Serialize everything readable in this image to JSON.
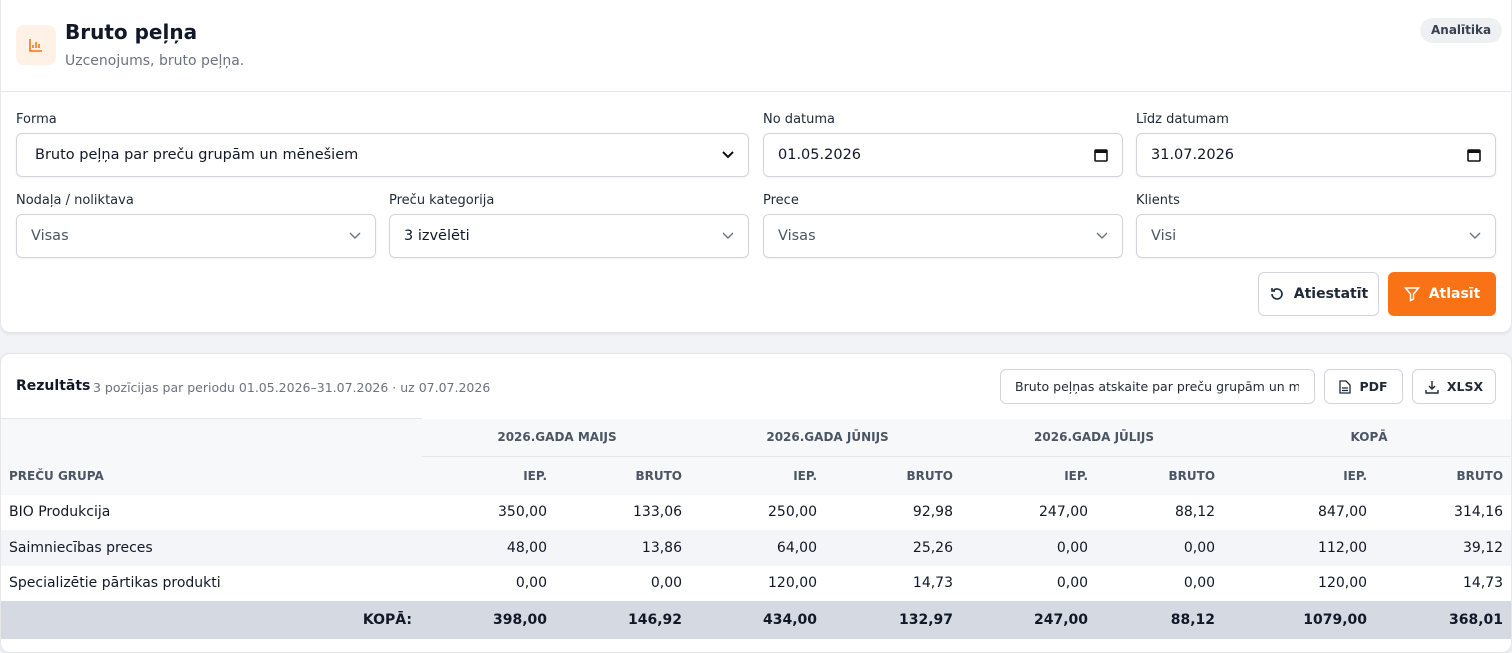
{
  "header": {
    "title": "Bruto peļņa",
    "subtitle": "Uzcenojums, bruto peļņa.",
    "badge": "Analītika"
  },
  "filters": {
    "form": {
      "label": "Forma",
      "value": "Bruto peļņa par preču grupām un mēnešiem"
    },
    "date_from": {
      "label": "No datuma",
      "value": "01.05.2026"
    },
    "date_to": {
      "label": "Līdz datumam",
      "value": "31.07.2026"
    },
    "department": {
      "label": "Nodaļa / noliktava",
      "value": "Visas"
    },
    "category": {
      "label": "Preču kategorija",
      "value": "3 izvēlēti"
    },
    "product": {
      "label": "Prece",
      "value": "Visas"
    },
    "client": {
      "label": "Klients",
      "value": "Visi"
    },
    "reset_button": "Atiestatīt",
    "filter_button": "Atlasīt"
  },
  "results": {
    "title": "Rezultāts",
    "summary": "3 pozīcijas par periodu 01.05.2026–31.07.2026 · uz 07.07.2026",
    "report_select": "Bruto peļņas atskaite par preču grupām un mēnešiem",
    "pdf_button": "PDF",
    "xlsx_button": "XLSX"
  },
  "table": {
    "periods": [
      "2026.GADA MAIJS",
      "2026.GADA JŪNIJS",
      "2026.GADA JŪLIJS",
      "KOPĀ"
    ],
    "group_header": "PREČU GRUPA",
    "subheaders": [
      "IEP.",
      "BRUTO",
      "IEP.",
      "BRUTO",
      "IEP.",
      "BRUTO",
      "IEP.",
      "BRUTO"
    ],
    "rows": [
      [
        "BIO Produkcija",
        "350,00",
        "133,06",
        "250,00",
        "92,98",
        "247,00",
        "88,12",
        "847,00",
        "314,16"
      ],
      [
        "Saimniecības preces",
        "48,00",
        "13,86",
        "64,00",
        "25,26",
        "0,00",
        "0,00",
        "112,00",
        "39,12"
      ],
      [
        "Specializētie pārtikas produkti",
        "0,00",
        "0,00",
        "120,00",
        "14,73",
        "0,00",
        "0,00",
        "120,00",
        "14,73"
      ]
    ],
    "total": [
      "KOPĀ:",
      "398,00",
      "146,92",
      "434,00",
      "132,97",
      "247,00",
      "88,12",
      "1079,00",
      "368,01"
    ]
  }
}
